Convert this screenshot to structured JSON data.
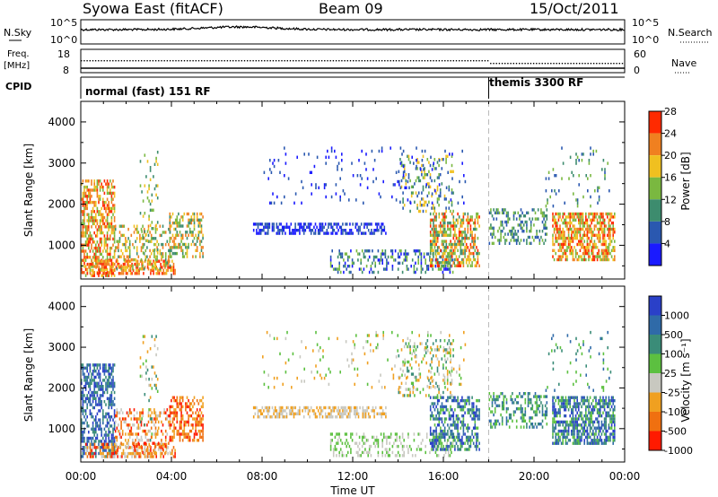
{
  "header": {
    "station": "Syowa East (fitACF)",
    "beam": "Beam 09",
    "date": "15/Oct/2011"
  },
  "summary": {
    "nsky": {
      "label": "N.Sky",
      "tick_top": "10^5",
      "tick_bottom": "10^0",
      "right_label": "N.Search",
      "right_tick_top": "10^5",
      "right_tick_bottom": "10^0"
    },
    "freq": {
      "label_line1": "Freq.",
      "label_line2": "[MHz]",
      "tick_top": "18",
      "tick_bottom": "8",
      "right_label": "Nave",
      "right_tick_top": "60",
      "right_tick_bottom": "0"
    },
    "cpid": {
      "label": "CPID",
      "modes": [
        {
          "name": "normal (fast) 151 RF",
          "start_hour": 0,
          "end_hour": 18.0
        },
        {
          "name": "themis 3300 RF",
          "start_hour": 18.0,
          "end_hour": 24
        }
      ]
    }
  },
  "chart_data": {
    "type": "heatmap",
    "xlabel": "Time UT",
    "ylabel": "Slant Range [km]",
    "x_ticks": [
      "00:00",
      "04:00",
      "08:00",
      "12:00",
      "16:00",
      "20:00",
      "00:00"
    ],
    "x_range_hours": [
      0,
      24
    ],
    "y_range_km": [
      180,
      4500
    ],
    "y_ticks": [
      1000,
      2000,
      3000,
      4000
    ],
    "mode_change_hour": 18.0,
    "panels": [
      {
        "name": "power",
        "colorbar_label": "Power [dB]",
        "colorbar_ticks": [
          "4",
          "8",
          "12",
          "16",
          "20",
          "24",
          "28"
        ],
        "colors": [
          "#1a1aff",
          "#2a58b0",
          "#3d8c6e",
          "#7ab840",
          "#f0c020",
          "#f08020",
          "#ff2a00"
        ]
      },
      {
        "name": "velocity",
        "colorbar_label": "Velocity [m s⁻¹]",
        "colorbar_ticks": [
          "1000",
          "500",
          "100",
          "25",
          "-25",
          "-100",
          "-500",
          "-1000"
        ],
        "colors": [
          "#2a40c8",
          "#2f6aa8",
          "#3a8c78",
          "#5cc040",
          "#c8c8c0",
          "#f0a020",
          "#f07010",
          "#ff1a00"
        ]
      }
    ],
    "echo_regions": [
      {
        "t0": 0.0,
        "t1": 1.5,
        "r0": 250,
        "r1": 2600,
        "power": [
          3,
          6
        ],
        "vel": [
          0,
          2
        ],
        "density": 0.55
      },
      {
        "t0": 0.2,
        "t1": 4.2,
        "r0": 250,
        "r1": 650,
        "power": [
          4,
          6
        ],
        "vel": [
          4,
          7
        ],
        "density": 0.55
      },
      {
        "t0": 1.5,
        "t1": 4.0,
        "r0": 400,
        "r1": 1500,
        "power": [
          2,
          5
        ],
        "vel": [
          4,
          7
        ],
        "density": 0.35
      },
      {
        "t0": 3.9,
        "t1": 5.4,
        "r0": 700,
        "r1": 1800,
        "power": [
          2,
          5
        ],
        "vel": [
          5,
          7
        ],
        "density": 0.45
      },
      {
        "t0": 2.6,
        "t1": 3.4,
        "r0": 700,
        "r1": 3300,
        "power": [
          2,
          4
        ],
        "vel": [
          2,
          5
        ],
        "density": 0.12
      },
      {
        "t0": 7.6,
        "t1": 13.5,
        "r0": 1250,
        "r1": 1550,
        "power": [
          0,
          1
        ],
        "vel": [
          4,
          5
        ],
        "density": 0.55
      },
      {
        "t0": 11.0,
        "t1": 16.5,
        "r0": 300,
        "r1": 900,
        "power": [
          0,
          3
        ],
        "vel": [
          3,
          4
        ],
        "density": 0.3
      },
      {
        "t0": 14.0,
        "t1": 16.5,
        "r0": 1800,
        "r1": 3200,
        "power": [
          1,
          4
        ],
        "vel": [
          2,
          5
        ],
        "density": 0.22
      },
      {
        "t0": 15.4,
        "t1": 17.6,
        "r0": 450,
        "r1": 1800,
        "power": [
          2,
          6
        ],
        "vel": [
          0,
          3
        ],
        "density": 0.55
      },
      {
        "t0": 18.0,
        "t1": 20.6,
        "r0": 1000,
        "r1": 1900,
        "power": [
          1,
          3
        ],
        "vel": [
          1,
          3
        ],
        "density": 0.35
      },
      {
        "t0": 20.8,
        "t1": 23.6,
        "r0": 600,
        "r1": 1800,
        "power": [
          3,
          6
        ],
        "vel": [
          0,
          3
        ],
        "density": 0.65
      },
      {
        "t0": 8.0,
        "t1": 17.0,
        "r0": 2000,
        "r1": 3400,
        "power": [
          0,
          1
        ],
        "vel": [
          3,
          5
        ],
        "density": 0.05
      },
      {
        "t0": 20.5,
        "t1": 23.5,
        "r0": 1900,
        "r1": 3400,
        "power": [
          1,
          3
        ],
        "vel": [
          1,
          3
        ],
        "density": 0.06
      }
    ]
  }
}
